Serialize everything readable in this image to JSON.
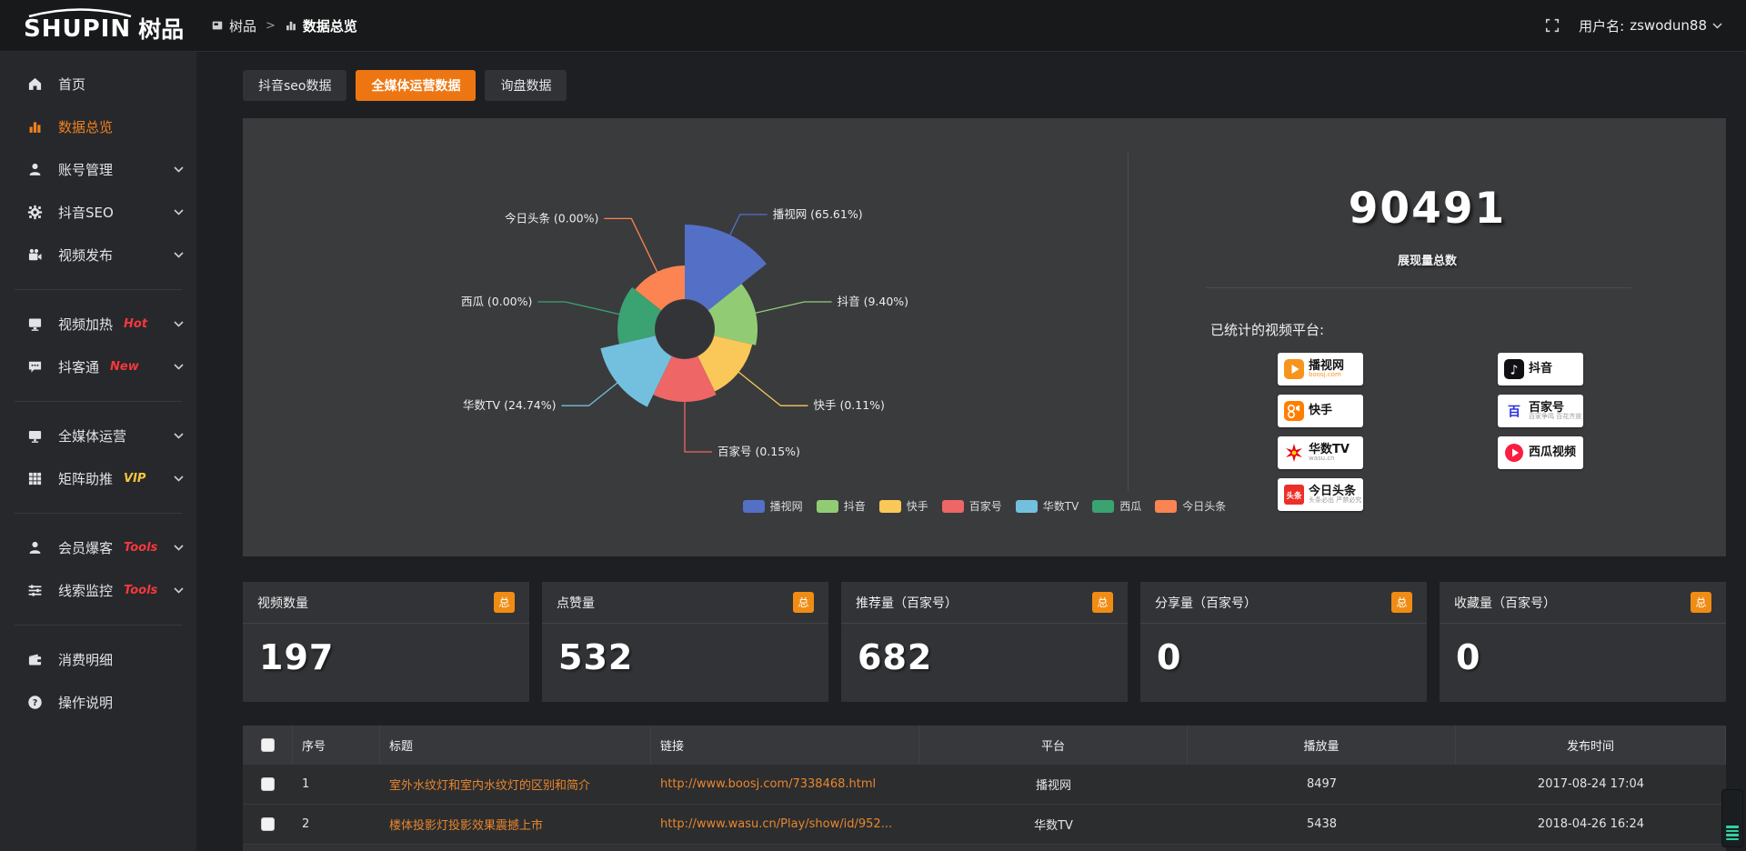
{
  "topbar": {
    "logo_en": "SHUPIN",
    "logo_cn": "树品",
    "breadcrumb": [
      {
        "label": "树品",
        "icon": "panel"
      },
      {
        "label": "数据总览",
        "icon": "chart"
      }
    ],
    "breadcrumb_separator": ">",
    "user_label": "用户名:",
    "username": "zswodun88"
  },
  "sidebar": {
    "items": [
      {
        "icon": "home",
        "label": "首页"
      },
      {
        "icon": "chart",
        "label": "数据总览",
        "active": true
      },
      {
        "icon": "user",
        "label": "账号管理",
        "chevron": true
      },
      {
        "icon": "gear",
        "label": "抖音SEO",
        "chevron": true
      },
      {
        "icon": "video",
        "label": "视频发布",
        "chevron": true
      },
      {
        "divider": true
      },
      {
        "icon": "screen",
        "label": "视频加热",
        "tag": "Hot",
        "tag_color": "red",
        "chevron": true
      },
      {
        "icon": "chat",
        "label": "抖客通",
        "tag": "New",
        "tag_color": "red",
        "chevron": true
      },
      {
        "divider": true
      },
      {
        "icon": "monitor",
        "label": "全媒体运营",
        "chevron": true
      },
      {
        "icon": "grid",
        "label": "矩阵助推",
        "tag": "VIP",
        "tag_color": "yellow",
        "chevron": true
      },
      {
        "divider": true
      },
      {
        "icon": "person",
        "label": "会员爆客",
        "tag": "Tools",
        "tag_color": "red",
        "chevron": true
      },
      {
        "icon": "sliders",
        "label": "线索监控",
        "tag": "Tools",
        "tag_color": "red",
        "chevron": true
      },
      {
        "divider": true
      },
      {
        "icon": "wallet",
        "label": "消费明细"
      },
      {
        "icon": "help",
        "label": "操作说明"
      }
    ]
  },
  "tabs": [
    {
      "label": "抖音seo数据",
      "active": false
    },
    {
      "label": "全媒体运营数据",
      "active": true
    },
    {
      "label": "询盘数据",
      "active": false
    }
  ],
  "chart_data": {
    "type": "pie",
    "variant": "rose",
    "legend_position": "bottom",
    "inner_radius": 33,
    "series": [
      {
        "name": "播视网",
        "value": 65.61,
        "label": "播视网 (65.61%)",
        "color": "#5470c6",
        "radius": 115
      },
      {
        "name": "抖音",
        "value": 9.4,
        "label": "抖音 (9.40%)",
        "color": "#91cc75",
        "radius": 80
      },
      {
        "name": "快手",
        "value": 0.11,
        "label": "快手 (0.11%)",
        "color": "#fac858",
        "radius": 76
      },
      {
        "name": "百家号",
        "value": 0.15,
        "label": "百家号 (0.15%)",
        "color": "#ee6666",
        "radius": 80
      },
      {
        "name": "华数TV",
        "value": 24.74,
        "label": "华数TV (24.74%)",
        "color": "#73c0de",
        "radius": 95
      },
      {
        "name": "西瓜",
        "value": 0.0,
        "label": "西瓜 (0.00%)",
        "color": "#3ba272",
        "radius": 74
      },
      {
        "name": "今日头条",
        "value": 0.0,
        "label": "今日头条 (0.00%)",
        "color": "#fc8452",
        "radius": 70
      }
    ]
  },
  "summary": {
    "total_value": "90491",
    "total_label": "展现量总数",
    "platforms_label": "已统计的视频平台:",
    "badges_left": [
      {
        "name": "播视网",
        "sub": "boosj.com",
        "sub_color": "orange",
        "icon": "boosj"
      },
      {
        "name": "快手",
        "icon": "kuaishou"
      },
      {
        "name": "华数TV",
        "sub": "wasu.cn",
        "sub_color": "gray",
        "icon": "wasu"
      },
      {
        "name": "今日头条",
        "sub": "头条必出 严禁必究",
        "sub_color": "gray",
        "icon": "toutiao"
      }
    ],
    "badges_right": [
      {
        "name": "抖音",
        "icon": "douyin"
      },
      {
        "name": "百家号",
        "sub": "百家争鸣 百花齐放",
        "sub_color": "gray",
        "icon": "baijiahao"
      },
      {
        "name": "西瓜视频",
        "icon": "xigua"
      }
    ]
  },
  "stat_cards": [
    {
      "title": "视频数量",
      "badge": "总",
      "value": "197"
    },
    {
      "title": "点赞量",
      "badge": "总",
      "value": "532"
    },
    {
      "title": "推荐量（百家号）",
      "badge": "总",
      "value": "682"
    },
    {
      "title": "分享量（百家号）",
      "badge": "总",
      "value": "0"
    },
    {
      "title": "收藏量（百家号）",
      "badge": "总",
      "value": "0"
    }
  ],
  "table": {
    "columns": [
      "",
      "序号",
      "标题",
      "链接",
      "平台",
      "播放量",
      "发布时间"
    ],
    "rows": [
      {
        "no": "1",
        "title": "室外水纹灯和室内水纹灯的区别和简介",
        "link": "http://www.boosj.com/7338468.html",
        "platform": "播视网",
        "plays": "8497",
        "time": "2017-08-24 17:04"
      },
      {
        "no": "2",
        "title": "楼体投影灯投影效果震撼上市",
        "link": "http://www.wasu.cn/Play/show/id/952...",
        "platform": "华数TV",
        "plays": "5438",
        "time": "2018-04-26 16:24"
      }
    ]
  },
  "colors": {
    "accent_orange": "#ee7612",
    "badge_orange": "#f08c14",
    "active_text_orange": "#f0811f",
    "link_orange": "#e8862d",
    "tag_red": "#f5383c",
    "tag_yellow": "#f7c53d",
    "panel_bg": "#3a3b3d",
    "widget_teal": "#2ed3a4"
  }
}
